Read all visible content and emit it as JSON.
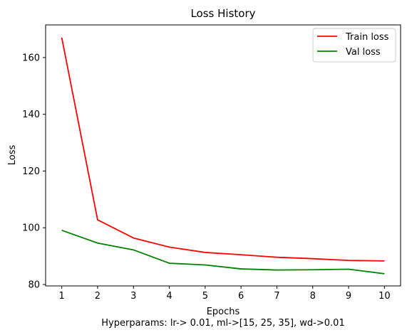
{
  "chart_data": {
    "type": "line",
    "title": "Loss History",
    "xlabel": "Epochs",
    "xlabel_note": "Hyperparams: lr-> 0.01, ml->[15, 25, 35], wd->0.01",
    "ylabel": "Loss",
    "x": [
      1,
      2,
      3,
      4,
      5,
      6,
      7,
      8,
      9,
      10
    ],
    "xticks": [
      "1",
      "2",
      "3",
      "4",
      "5",
      "6",
      "7",
      "8",
      "9",
      "10"
    ],
    "yticks": [
      80,
      100,
      120,
      140,
      160
    ],
    "xlim": [
      0.55,
      10.45
    ],
    "ylim": [
      79.5,
      171.5
    ],
    "grid": false,
    "legend_position": "top-right",
    "series": [
      {
        "name": "Train loss",
        "color": "#ff0000",
        "values": [
          167.0,
          102.8,
          96.4,
          93.2,
          91.3,
          90.5,
          89.6,
          89.1,
          88.5,
          88.3
        ]
      },
      {
        "name": "Val loss",
        "color": "#008000",
        "values": [
          99.1,
          94.6,
          92.2,
          87.5,
          86.9,
          85.5,
          85.1,
          85.2,
          85.4,
          83.8
        ]
      }
    ]
  }
}
